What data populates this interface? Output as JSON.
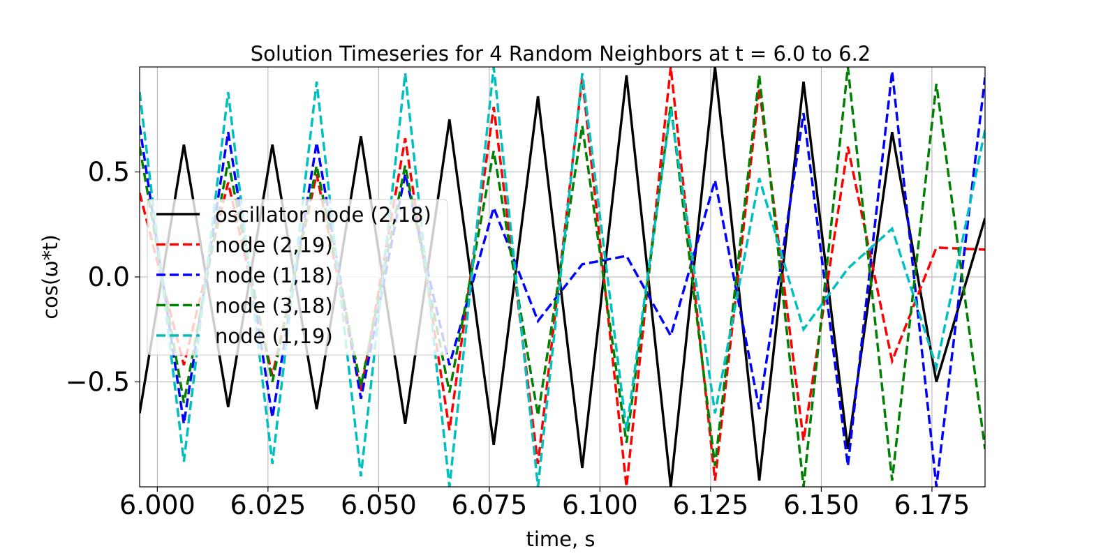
{
  "chart_data": {
    "type": "line",
    "title": "Solution Timeseries for 4 Random Neighbors at t = 6.0 to 6.2",
    "xlabel": "time, s",
    "ylabel": "cos(ω*t)",
    "xlim": [
      5.996,
      6.187
    ],
    "ylim": [
      -1.0,
      1.0
    ],
    "grid": true,
    "legend_position": "center-left",
    "x_ticks": [
      6.0,
      6.025,
      6.05,
      6.075,
      6.1,
      6.125,
      6.15,
      6.175
    ],
    "x_tick_labels": [
      "6.000",
      "6.025",
      "6.050",
      "6.075",
      "6.100",
      "6.125",
      "6.150",
      "6.175"
    ],
    "y_ticks": [
      -0.5,
      0.0,
      0.5
    ],
    "y_tick_labels": [
      "−0.5",
      "0.0",
      "0.5"
    ],
    "series": [
      {
        "name": "oscillator node (2,18)",
        "color": "#000000",
        "dash": "solid",
        "x": [
          5.996,
          6.006,
          6.016,
          6.026,
          6.036,
          6.046,
          6.056,
          6.066,
          6.076,
          6.086,
          6.096,
          6.106,
          6.116,
          6.126,
          6.136,
          6.146,
          6.156,
          6.166,
          6.176,
          6.187
        ],
        "y": [
          -0.65,
          0.63,
          -0.62,
          0.63,
          -0.63,
          0.67,
          -0.7,
          0.75,
          -0.8,
          0.86,
          -0.91,
          0.96,
          -1.0,
          1.0,
          -0.97,
          0.93,
          -0.82,
          0.69,
          -0.5,
          0.28
        ]
      },
      {
        "name": "node (2,19)",
        "color": "#ff0000",
        "dash": "dashed",
        "x": [
          5.996,
          6.006,
          6.016,
          6.026,
          6.036,
          6.046,
          6.056,
          6.066,
          6.076,
          6.086,
          6.096,
          6.106,
          6.116,
          6.126,
          6.136,
          6.146,
          6.156,
          6.166,
          6.176,
          6.187
        ],
        "y": [
          0.4,
          -0.42,
          0.45,
          -0.47,
          0.49,
          -0.55,
          0.66,
          -0.73,
          0.81,
          -0.89,
          0.95,
          -1.0,
          1.0,
          -0.97,
          0.9,
          -0.78,
          0.62,
          -0.4,
          0.14,
          0.13
        ]
      },
      {
        "name": "node (1,18)",
        "color": "#0000ff",
        "dash": "dashed",
        "x": [
          5.996,
          6.006,
          6.016,
          6.026,
          6.036,
          6.046,
          6.056,
          6.066,
          6.076,
          6.086,
          6.096,
          6.106,
          6.116,
          6.126,
          6.136,
          6.146,
          6.156,
          6.166,
          6.176,
          6.187
        ],
        "y": [
          0.72,
          -0.7,
          0.69,
          -0.67,
          0.64,
          -0.58,
          0.49,
          -0.42,
          0.33,
          -0.21,
          0.06,
          0.1,
          -0.28,
          0.46,
          -0.63,
          0.78,
          -0.9,
          0.98,
          -1.0,
          0.95
        ]
      },
      {
        "name": "node (3,18)",
        "color": "#008000",
        "dash": "dashed",
        "x": [
          5.996,
          6.006,
          6.016,
          6.026,
          6.036,
          6.046,
          6.056,
          6.066,
          6.076,
          6.086,
          6.096,
          6.106,
          6.116,
          6.126,
          6.136,
          6.146,
          6.156,
          6.166,
          6.176,
          6.187
        ],
        "y": [
          0.62,
          -0.6,
          0.55,
          -0.5,
          0.53,
          -0.52,
          0.53,
          -0.55,
          0.6,
          -0.66,
          0.72,
          -0.79,
          0.82,
          -0.9,
          0.96,
          -1.0,
          1.0,
          -0.97,
          0.92,
          -0.82
        ]
      },
      {
        "name": "node (1,19)",
        "color": "#00bfbf",
        "dash": "dashed",
        "x": [
          5.996,
          6.006,
          6.016,
          6.026,
          6.036,
          6.046,
          6.056,
          6.066,
          6.076,
          6.086,
          6.096,
          6.106,
          6.116,
          6.126,
          6.136,
          6.146,
          6.156,
          6.166,
          6.176,
          6.187
        ],
        "y": [
          0.88,
          -0.88,
          0.88,
          -0.89,
          0.93,
          -0.95,
          0.97,
          -1.0,
          1.0,
          -1.0,
          0.97,
          -0.73,
          0.8,
          -0.65,
          0.47,
          -0.25,
          0.04,
          0.23,
          -0.43,
          0.7
        ]
      }
    ]
  }
}
